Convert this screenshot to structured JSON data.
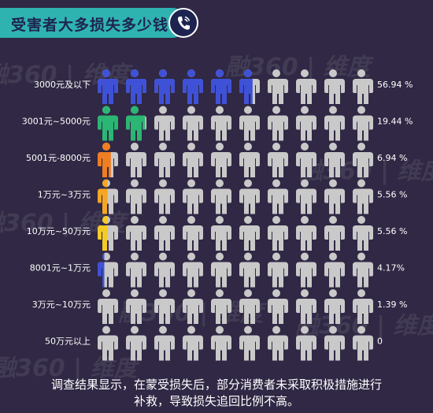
{
  "title": "受害者大多损失多少钱？",
  "icon": "phone-icon",
  "watermark": "融360 | 维度",
  "colors": {
    "background": "#302844",
    "title_bar": "#2fb3b1",
    "title_text": "#1e2450",
    "empty_person": "#c9c9c9",
    "label_text": "#ffffff"
  },
  "chart_data": {
    "type": "pictograph",
    "title": "受害者大多损失多少钱？",
    "icons_per_row": 10,
    "unit": "%",
    "categories": [
      "3000元及以下",
      "3001元~5000元",
      "5001元-8000元",
      "1万元~3万元",
      "10万元~50万元",
      "8001元~1万元",
      "3万元~10万元",
      "50万元以上"
    ],
    "values": [
      56.94,
      19.44,
      6.94,
      5.56,
      5.56,
      4.17,
      1.39,
      0
    ],
    "value_labels": [
      "56.94 %",
      "19.44 %",
      "6.94 %",
      "5.56 %",
      "5.56 %",
      "4.17%",
      "1.39 %",
      "0"
    ],
    "colors": [
      "#3f51d6",
      "#2bb673",
      "#ef7d22",
      "#f5a623",
      "#f4cb25",
      "#3f51d6",
      "#2bb673",
      "#c9c9c9"
    ]
  },
  "footer": {
    "line1": "调查结果显示，在蒙受损失后，部分消费者未采取积极措施进行",
    "line2": "补救，导致损失追回比例不高。"
  }
}
